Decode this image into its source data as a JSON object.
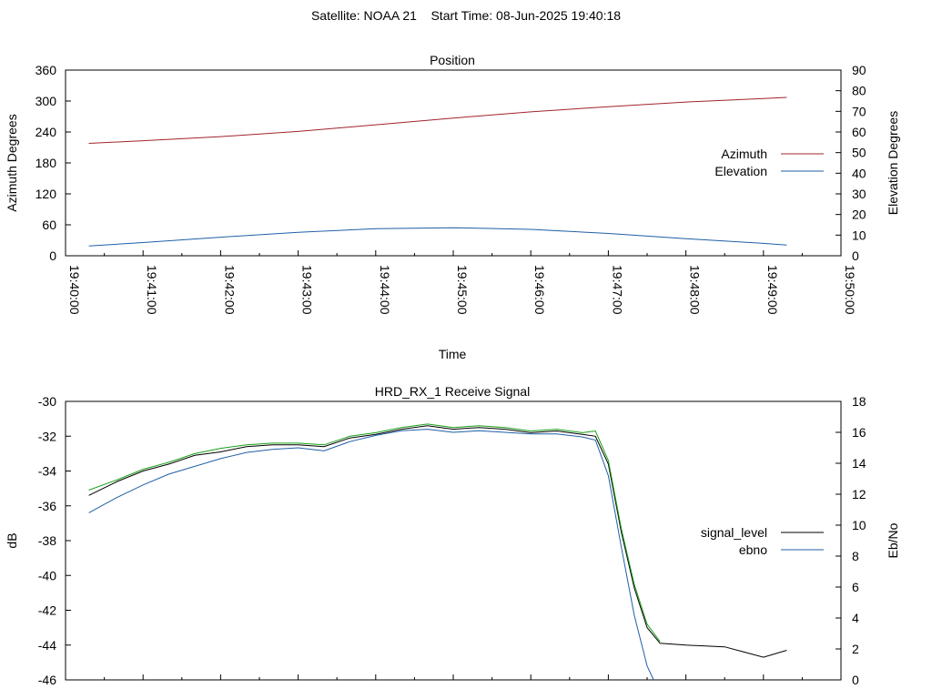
{
  "figure_title": "Satellite: NOAA 21    Start Time: 08-Jun-2025 19:40:18",
  "chart_data": [
    {
      "type": "line",
      "title": "Position",
      "xlabel": "Time",
      "ylabel": "Azimuth Degrees",
      "y2label": "Elevation Degrees",
      "x_ticks": [
        "19:40:00",
        "19:41:00",
        "19:42:00",
        "19:43:00",
        "19:44:00",
        "19:45:00",
        "19:46:00",
        "19:47:00",
        "19:48:00",
        "19:49:00",
        "19:50:00"
      ],
      "xlim": [
        "19:40:00",
        "19:50:00"
      ],
      "ylim": [
        0,
        360
      ],
      "y_ticks": [
        0,
        60,
        120,
        180,
        240,
        300,
        360
      ],
      "y2lim": [
        0,
        90
      ],
      "y2_ticks": [
        0,
        10,
        20,
        30,
        40,
        50,
        60,
        70,
        80,
        90
      ],
      "grid": false,
      "legend_position": "right",
      "series": [
        {
          "name": "Azimuth",
          "axis": "left",
          "color": "#a0242b",
          "x": [
            "19:40:18",
            "19:41:00",
            "19:42:00",
            "19:43:00",
            "19:44:00",
            "19:45:00",
            "19:46:00",
            "19:47:00",
            "19:48:00",
            "19:49:00",
            "19:49:18"
          ],
          "values": [
            218,
            223,
            231,
            241,
            254,
            267,
            279,
            289,
            298,
            305,
            307
          ]
        },
        {
          "name": "Elevation",
          "axis": "right",
          "color": "#1f5fa6",
          "x": [
            "19:40:18",
            "19:41:00",
            "19:42:00",
            "19:43:00",
            "19:44:00",
            "19:45:00",
            "19:46:00",
            "19:47:00",
            "19:48:00",
            "19:49:00",
            "19:49:18"
          ],
          "values": [
            4.7,
            6.4,
            9.0,
            11.4,
            13.1,
            13.6,
            12.8,
            10.8,
            8.3,
            6.0,
            5.2
          ]
        }
      ]
    },
    {
      "type": "line",
      "title": "HRD_RX_1 Receive Signal",
      "xlabel": "",
      "ylabel": "dB",
      "y2label": "Eb/No",
      "xlim": [
        "19:40:00",
        "19:50:00"
      ],
      "ylim": [
        -46,
        -30
      ],
      "y_ticks": [
        -30,
        -32,
        -34,
        -36,
        -38,
        -40,
        -42,
        -44,
        -46
      ],
      "y2lim": [
        0,
        18
      ],
      "y2_ticks": [
        0,
        2,
        4,
        6,
        8,
        10,
        12,
        14,
        16,
        18
      ],
      "grid": false,
      "legend_position": "right",
      "series": [
        {
          "name": "signal_level",
          "axis": "left",
          "color": "#000000",
          "x": [
            "19:40:18",
            "19:40:40",
            "19:41:00",
            "19:41:20",
            "19:41:40",
            "19:42:00",
            "19:42:20",
            "19:42:40",
            "19:43:00",
            "19:43:20",
            "19:43:40",
            "19:44:00",
            "19:44:20",
            "19:44:40",
            "19:45:00",
            "19:45:20",
            "19:45:40",
            "19:46:00",
            "19:46:20",
            "19:46:40",
            "19:46:50",
            "19:47:00",
            "19:47:10",
            "19:47:20",
            "19:47:30",
            "19:47:40",
            "19:48:00",
            "19:48:30",
            "19:48:45",
            "19:49:00",
            "19:49:18"
          ],
          "values": [
            -35.4,
            -34.6,
            -34.0,
            -33.6,
            -33.1,
            -32.9,
            -32.6,
            -32.5,
            -32.5,
            -32.6,
            -32.1,
            -31.9,
            -31.6,
            -31.4,
            -31.6,
            -31.5,
            -31.6,
            -31.8,
            -31.7,
            -31.9,
            -32.0,
            -33.6,
            -37.5,
            -40.7,
            -43.0,
            -43.9,
            -44.0,
            -44.1,
            -44.4,
            -44.7,
            -44.3
          ]
        },
        {
          "name": "ebno",
          "axis": "right",
          "color": "#1f5fa6",
          "x": [
            "19:40:18",
            "19:40:40",
            "19:41:00",
            "19:41:20",
            "19:41:40",
            "19:42:00",
            "19:42:20",
            "19:42:40",
            "19:43:00",
            "19:43:20",
            "19:43:40",
            "19:44:00",
            "19:44:20",
            "19:44:40",
            "19:45:00",
            "19:45:20",
            "19:45:40",
            "19:46:00",
            "19:46:20",
            "19:46:40",
            "19:46:50",
            "19:47:00",
            "19:47:10",
            "19:47:20",
            "19:47:30",
            "19:47:35"
          ],
          "values": [
            10.8,
            11.8,
            12.6,
            13.3,
            13.8,
            14.3,
            14.7,
            14.9,
            15.0,
            14.8,
            15.4,
            15.8,
            16.1,
            16.2,
            16.0,
            16.1,
            16.0,
            15.9,
            15.9,
            15.7,
            15.5,
            13.2,
            8.6,
            4.2,
            0.9,
            0.0
          ]
        },
        {
          "name": "",
          "axis": "left",
          "color": "#19a019",
          "x": [
            "19:40:18",
            "19:40:40",
            "19:41:00",
            "19:41:20",
            "19:41:40",
            "19:42:00",
            "19:42:20",
            "19:42:40",
            "19:43:00",
            "19:43:20",
            "19:43:40",
            "19:44:00",
            "19:44:20",
            "19:44:40",
            "19:45:00",
            "19:45:20",
            "19:45:40",
            "19:46:00",
            "19:46:20",
            "19:46:40",
            "19:46:50",
            "19:47:00",
            "19:47:10",
            "19:47:20",
            "19:47:30",
            "19:47:40"
          ],
          "values": [
            -35.1,
            -34.5,
            -33.9,
            -33.5,
            -33.0,
            -32.7,
            -32.5,
            -32.4,
            -32.4,
            -32.5,
            -32.0,
            -31.8,
            -31.5,
            -31.3,
            -31.5,
            -31.4,
            -31.5,
            -31.7,
            -31.6,
            -31.8,
            -31.7,
            -33.4,
            -37.3,
            -40.5,
            -42.8,
            -43.8
          ]
        }
      ]
    }
  ]
}
